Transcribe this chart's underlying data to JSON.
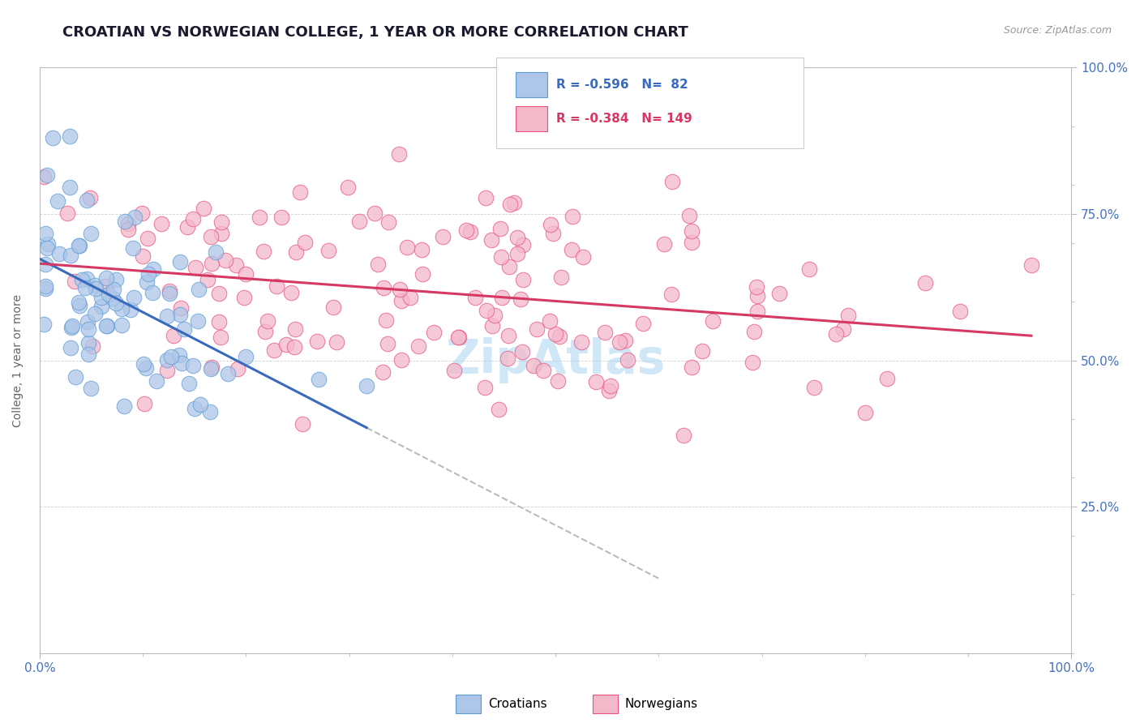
{
  "title": "CROATIAN VS NORWEGIAN COLLEGE, 1 YEAR OR MORE CORRELATION CHART",
  "source_text": "Source: ZipAtlas.com",
  "ylabel": "College, 1 year or more",
  "xmin": 0.0,
  "xmax": 1.0,
  "ymin": 0.0,
  "ymax": 1.0,
  "croatian_R": -0.596,
  "croatian_N": 82,
  "norwegian_R": -0.384,
  "norwegian_N": 149,
  "croatian_dot_fill": "#aec6e8",
  "croatian_dot_edge": "#5b9bd5",
  "norwegian_dot_fill": "#f4b8cb",
  "norwegian_dot_edge": "#e8517a",
  "trendline_croatian_color": "#3a6abf",
  "trendline_norwegian_color": "#d63864",
  "trendline_dashed_color": "#bbbbbb",
  "background_color": "#ffffff",
  "grid_color": "#cccccc",
  "title_color": "#1a1a2e",
  "title_fontsize": 13,
  "label_fontsize": 10,
  "watermark_color": "#a8d4f0",
  "legend_box_edge": "#cccccc",
  "legend_cr_fill": "#aec6e8",
  "legend_cr_edge": "#5b9bd5",
  "legend_no_fill": "#f4b8cb",
  "legend_no_edge": "#e8517a",
  "tick_color": "#4472c4",
  "axis_color": "#bbbbbb"
}
